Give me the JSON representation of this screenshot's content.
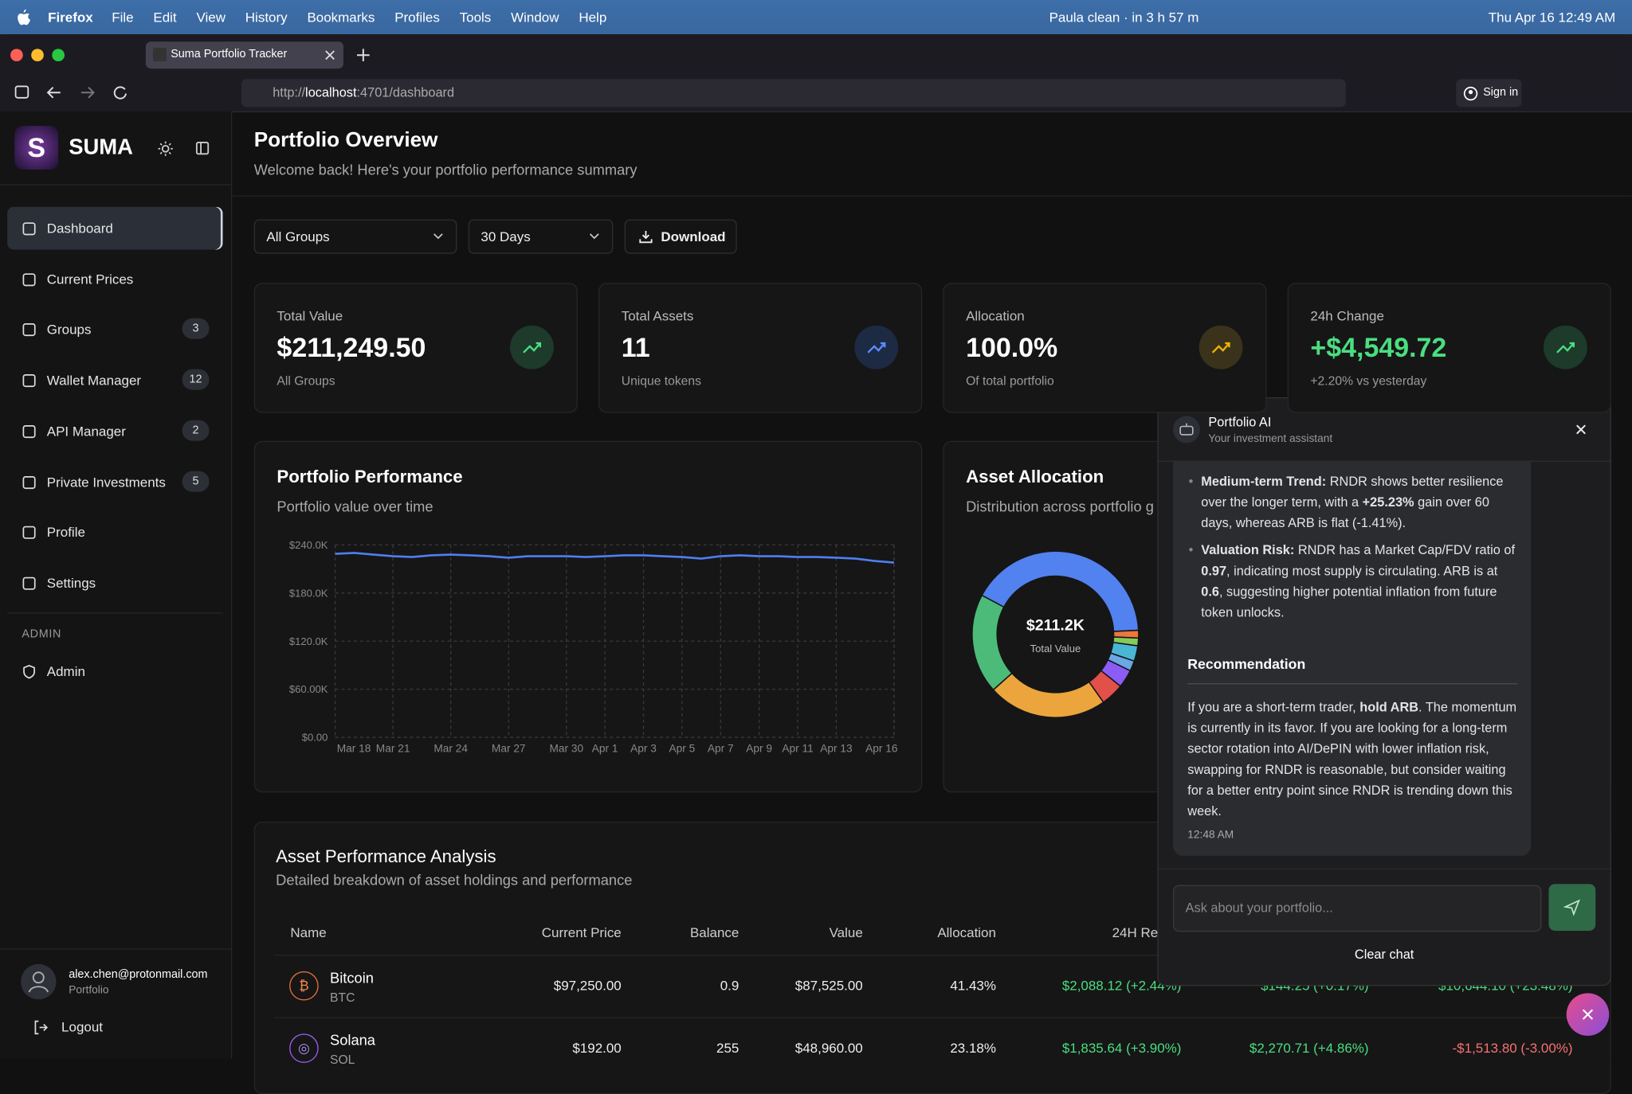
{
  "menubar": {
    "app": "Firefox",
    "menus": [
      "File",
      "Edit",
      "View",
      "History",
      "Bookmarks",
      "Profiles",
      "Tools",
      "Window",
      "Help"
    ],
    "status": "Paula clean · in 3 h 57 m",
    "datetime": "Thu Apr 16  12:49 AM"
  },
  "browser": {
    "tab": "Suma Portfolio Tracker",
    "url_scheme": "http://",
    "url_host": "localhost",
    "url_path": ":4701/dashboard",
    "sign_in": "Sign in"
  },
  "sidebar": {
    "logo": "S",
    "brand": "SUMA",
    "nav": [
      {
        "label": "Dashboard"
      },
      {
        "label": "Current Prices"
      },
      {
        "label": "Groups",
        "badge": 3
      },
      {
        "label": "Wallet Manager",
        "badge": 12
      },
      {
        "label": "API Manager",
        "badge": 2
      },
      {
        "label": "Private Investments",
        "badge": 5
      },
      {
        "label": "Profile"
      },
      {
        "label": "Settings"
      }
    ],
    "admin_heading": "ADMIN",
    "admin": "Admin",
    "user_email": "alex.chen@protonmail.com",
    "user_role": "Portfolio",
    "logout": "Logout"
  },
  "header": {
    "title": "Portfolio Overview",
    "subtitle": "Welcome back! Here's your portfolio performance summary"
  },
  "filters": {
    "group": "All Groups",
    "period": "30 Days",
    "download": "Download"
  },
  "stats": [
    {
      "label": "Total Value",
      "value": "$211,249.50",
      "note": "All Groups"
    },
    {
      "label": "Total Assets",
      "value": "11",
      "note": "Unique tokens"
    },
    {
      "label": "Allocation",
      "value": "100.0%",
      "note": "Of total portfolio"
    },
    {
      "label": "24h Change",
      "value": "+$4,549.72",
      "note": "+2.20% vs yesterday"
    }
  ],
  "performance": {
    "title": "Portfolio Performance",
    "subtitle": "Portfolio value over time",
    "chart": {
      "type": "line",
      "color": "#4f7ff0",
      "categories": [
        "Mar 18",
        null,
        null,
        "Mar 21",
        null,
        null,
        "Mar 24",
        null,
        null,
        "Mar 27",
        null,
        null,
        "Mar 30",
        null,
        "Apr 1",
        null,
        "Apr 3",
        null,
        "Apr 5",
        null,
        "Apr 7",
        null,
        "Apr 9",
        null,
        "Apr 11",
        null,
        "Apr 13",
        null,
        null,
        "Apr 16"
      ],
      "values": [
        229000,
        230000,
        228000,
        226000,
        225000,
        227000,
        228000,
        227000,
        226000,
        224000,
        226000,
        226000,
        226000,
        225000,
        226000,
        227000,
        227000,
        226000,
        225000,
        223000,
        226000,
        227000,
        226000,
        226000,
        225000,
        225000,
        224000,
        223000,
        220000,
        218000
      ],
      "ylim": [
        0,
        240000
      ],
      "yticks": [
        {
          "value": 0,
          "label": "$0.00"
        },
        {
          "value": 60000,
          "label": "$60.00K"
        },
        {
          "value": 120000,
          "label": "$120.0K"
        },
        {
          "value": 180000,
          "label": "$180.0K"
        },
        {
          "value": 240000,
          "label": "$240.0K"
        }
      ],
      "grid": true
    }
  },
  "allocation": {
    "title": "Asset Allocation",
    "subtitle": "Distribution across portfolio g",
    "chart": {
      "type": "pie",
      "values": [
        41.43,
        1.5,
        1.5,
        3,
        2,
        3.5,
        4.5,
        23.18,
        19.39
      ],
      "colors": [
        "#5282f0",
        "#f0763a",
        "#86c95c",
        "#49b6d6",
        "#6aa8e6",
        "#8b5cf6",
        "#e2504a",
        "#eca53c",
        "#4cbb7a"
      ],
      "center_value": "$211.2K",
      "center_label": "Total Value"
    }
  },
  "table": {
    "title": "Asset Performance Analysis",
    "subtitle": "Detailed breakdown of asset holdings and performance",
    "columns": [
      "Name",
      "Current Price",
      "Balance",
      "Value",
      "Allocation",
      "24H Return"
    ],
    "rows": [
      {
        "name": "Bitcoin",
        "symbol": "BTC",
        "icon": "₿",
        "price": "$97,250.00",
        "balance": "0.9",
        "value": "$87,525.00",
        "allocation": "41.43%",
        "r24": "$2,088.12 (+2.44%)",
        "r7": "$144.25 (+0.17%)",
        "r30": "$10,644.10 (+23.48%)"
      },
      {
        "name": "Solana",
        "symbol": "SOL",
        "icon": "◎",
        "price": "$192.00",
        "balance": "255",
        "value": "$48,960.00",
        "allocation": "23.18%",
        "r24": "$1,835.64 (+3.90%)",
        "r7": "$2,270.71 (+4.86%)",
        "r30": "-$1,513.80 (-3.00%)"
      }
    ]
  },
  "chat": {
    "title": "Portfolio AI",
    "subtitle": "Your investment assistant",
    "bullets": [
      [
        "Medium-term Trend:",
        " RNDR shows better resilience over the longer term, with a ",
        "+25.23%",
        " gain over 60 days, whereas ARB is flat (-1.41%)."
      ],
      [
        "Valuation Risk:",
        " RNDR has a Market Cap/FDV ratio of ",
        "0.97",
        ", indicating most supply is circulating. ARB is at ",
        "0.6",
        ", suggesting higher potential inflation from future token unlocks."
      ]
    ],
    "heading": "Recommendation",
    "paragraph": [
      "If you are a short-term trader, ",
      "hold ARB",
      ". The momentum is currently in its favor. If you are looking for a long-term sector rotation into AI/DePIN with lower inflation risk, swapping for RNDR is reasonable, but consider waiting for a better entry point since RNDR is trending down this week."
    ],
    "time": "12:48 AM",
    "placeholder": "Ask about your portfolio...",
    "clear": "Clear chat"
  }
}
